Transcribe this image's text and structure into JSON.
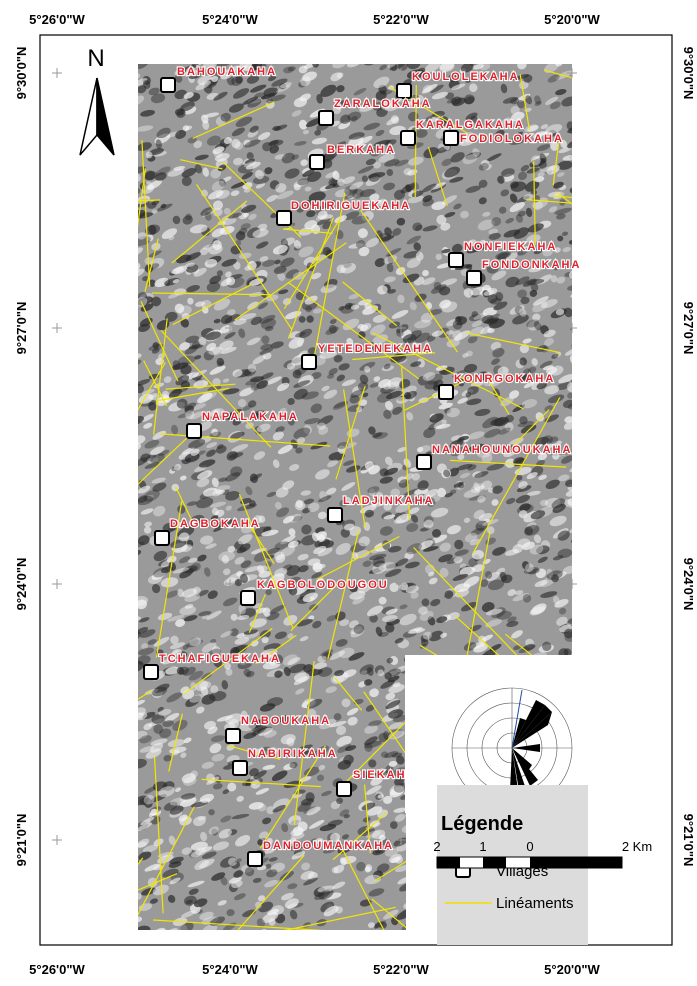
{
  "map": {
    "north": "N",
    "longitude_labels": [
      "5°26'0\"W",
      "5°24'0\"W",
      "5°22'0\"W",
      "5°20'0\"W"
    ],
    "latitude_labels": [
      "9°30'0\"N",
      "9°27'0\"N",
      "9°24'0\"N",
      "9°21'0\"N"
    ],
    "villages": [
      "BAHOUAKAHA",
      "KOULOLEKAHA",
      "ZARALOKAHA",
      "KARALGAKAHA",
      "FODIOLOKAHA",
      "BERKAHA",
      "DOHIRIGUEKAHA",
      "NONFIEKAHA",
      "FONDONKAHA",
      "YETEDENEKAHA",
      "KONRGOKAHA",
      "NAPALAKAHA",
      "NANAHOUNOUKAHA",
      "LADJINKAHA",
      "DAGBOKAHA",
      "KAGBOLODOUGOU",
      "TCHAFIGUEKAHA",
      "NABOUKAHA",
      "NABIRIKAHA",
      "SIEKAHA",
      "DANDOUMANKAHA"
    ],
    "legend": {
      "title": "Légende",
      "items": [
        "Villages",
        "Linéaments"
      ]
    },
    "scale": {
      "labels": [
        "2",
        "1",
        "0",
        "2 Km"
      ]
    }
  }
}
